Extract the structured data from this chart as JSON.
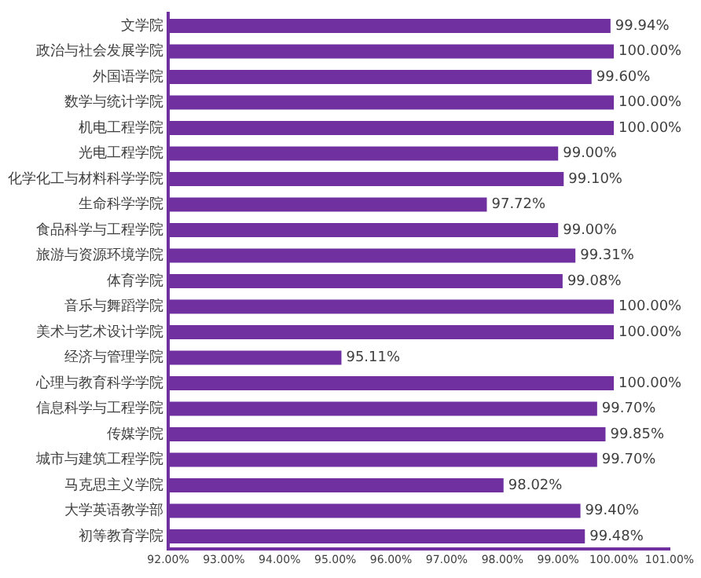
{
  "chart_data": {
    "type": "bar",
    "orientation": "horizontal",
    "categories": [
      "文学院",
      "政治与社会发展学院",
      "外国语学院",
      "数学与统计学院",
      "机电工程学院",
      "光电工程学院",
      "化学化工与材料科学学院",
      "生命科学学院",
      "食品科学与工程学院",
      "旅游与资源环境学院",
      "体育学院",
      "音乐与舞蹈学院",
      "美术与艺术设计学院",
      "经济与管理学院",
      "心理与教育科学学院",
      "信息科学与工程学院",
      "传媒学院",
      "城市与建筑工程学院",
      "马克思主义学院",
      "大学英语教学部",
      "初等教育学院"
    ],
    "values": [
      99.94,
      100,
      99.6,
      100,
      100,
      99.0,
      99.1,
      97.72,
      99.0,
      99.31,
      99.08,
      100,
      100,
      95.11,
      100,
      99.7,
      99.85,
      99.7,
      98.02,
      99.4,
      99.48
    ],
    "value_labels": [
      "99.94%",
      "100.00%",
      "99.60%",
      "100.00%",
      "100.00%",
      "99.00%",
      "99.10%",
      "97.72%",
      "99.00%",
      "99.31%",
      "99.08%",
      "100.00%",
      "100.00%",
      "95.11%",
      "100.00%",
      "99.70%",
      "99.85%",
      "99.70%",
      "98.02%",
      "99.40%",
      "99.48%"
    ],
    "color": "#7030a0",
    "xlim": [
      92,
      101
    ],
    "xticks": [
      {
        "value": 92,
        "label": "92.00%"
      },
      {
        "value": 93,
        "label": "93.00%"
      },
      {
        "value": 94,
        "label": "94.00%"
      },
      {
        "value": 95,
        "label": "95.00%"
      },
      {
        "value": 96,
        "label": "96.00%"
      },
      {
        "value": 97,
        "label": "97.00%"
      },
      {
        "value": 98,
        "label": "98.00%"
      },
      {
        "value": 99,
        "label": "99.00%"
      },
      {
        "value": 100,
        "label": "100.00%"
      },
      {
        "value": 101,
        "label": "101.00%"
      }
    ],
    "grid": false,
    "legend": false
  }
}
